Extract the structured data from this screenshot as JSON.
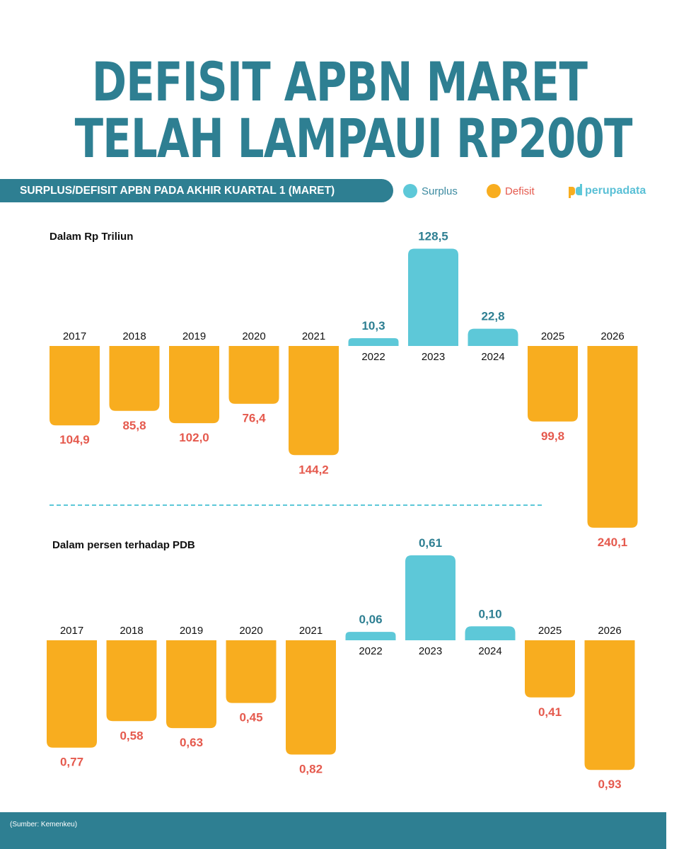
{
  "title_line1": "DEFISIT APBN MARET",
  "title_line2": "TELAH LAMPAUI RP200T",
  "banner": "SURPLUS/DEFISIT APBN PADA AKHIR KUARTAL 1 (MARET)",
  "legend": {
    "surplus": "Surplus",
    "defisit": "Defisit"
  },
  "logo": "perupadata",
  "source": "(Sumber: Kemenkeu)",
  "colors": {
    "surplus": "#5dc8d8",
    "defisit": "#f8ad1f",
    "surplus_label": "#2e7f92",
    "defisit_label": "#e55a4e",
    "accent": "#2e7f92"
  },
  "chart_data": [
    {
      "type": "bar",
      "subtitle": "Dalam Rp Triliun",
      "categories": [
        "2017",
        "2018",
        "2019",
        "2020",
        "2021",
        "2022",
        "2023",
        "2024",
        "2025",
        "2026"
      ],
      "values": [
        -104.9,
        -85.8,
        -102.0,
        -76.4,
        -144.2,
        10.3,
        128.5,
        22.8,
        -99.8,
        -240.1
      ],
      "labels": [
        "104,9",
        "85,8",
        "102,0",
        "76,4",
        "144,2",
        "10,3",
        "128,5",
        "22,8",
        "99,8",
        "240,1"
      ]
    },
    {
      "type": "bar",
      "subtitle": "Dalam persen terhadap PDB",
      "categories": [
        "2017",
        "2018",
        "2019",
        "2020",
        "2021",
        "2022",
        "2023",
        "2024",
        "2025",
        "2026"
      ],
      "values": [
        -0.77,
        -0.58,
        -0.63,
        -0.45,
        -0.82,
        0.06,
        0.61,
        0.1,
        -0.41,
        -0.93
      ],
      "labels": [
        "0,77",
        "0,58",
        "0,63",
        "0,45",
        "0,82",
        "0,06",
        "0,61",
        "0,10",
        "0,41",
        "0,93"
      ]
    }
  ]
}
